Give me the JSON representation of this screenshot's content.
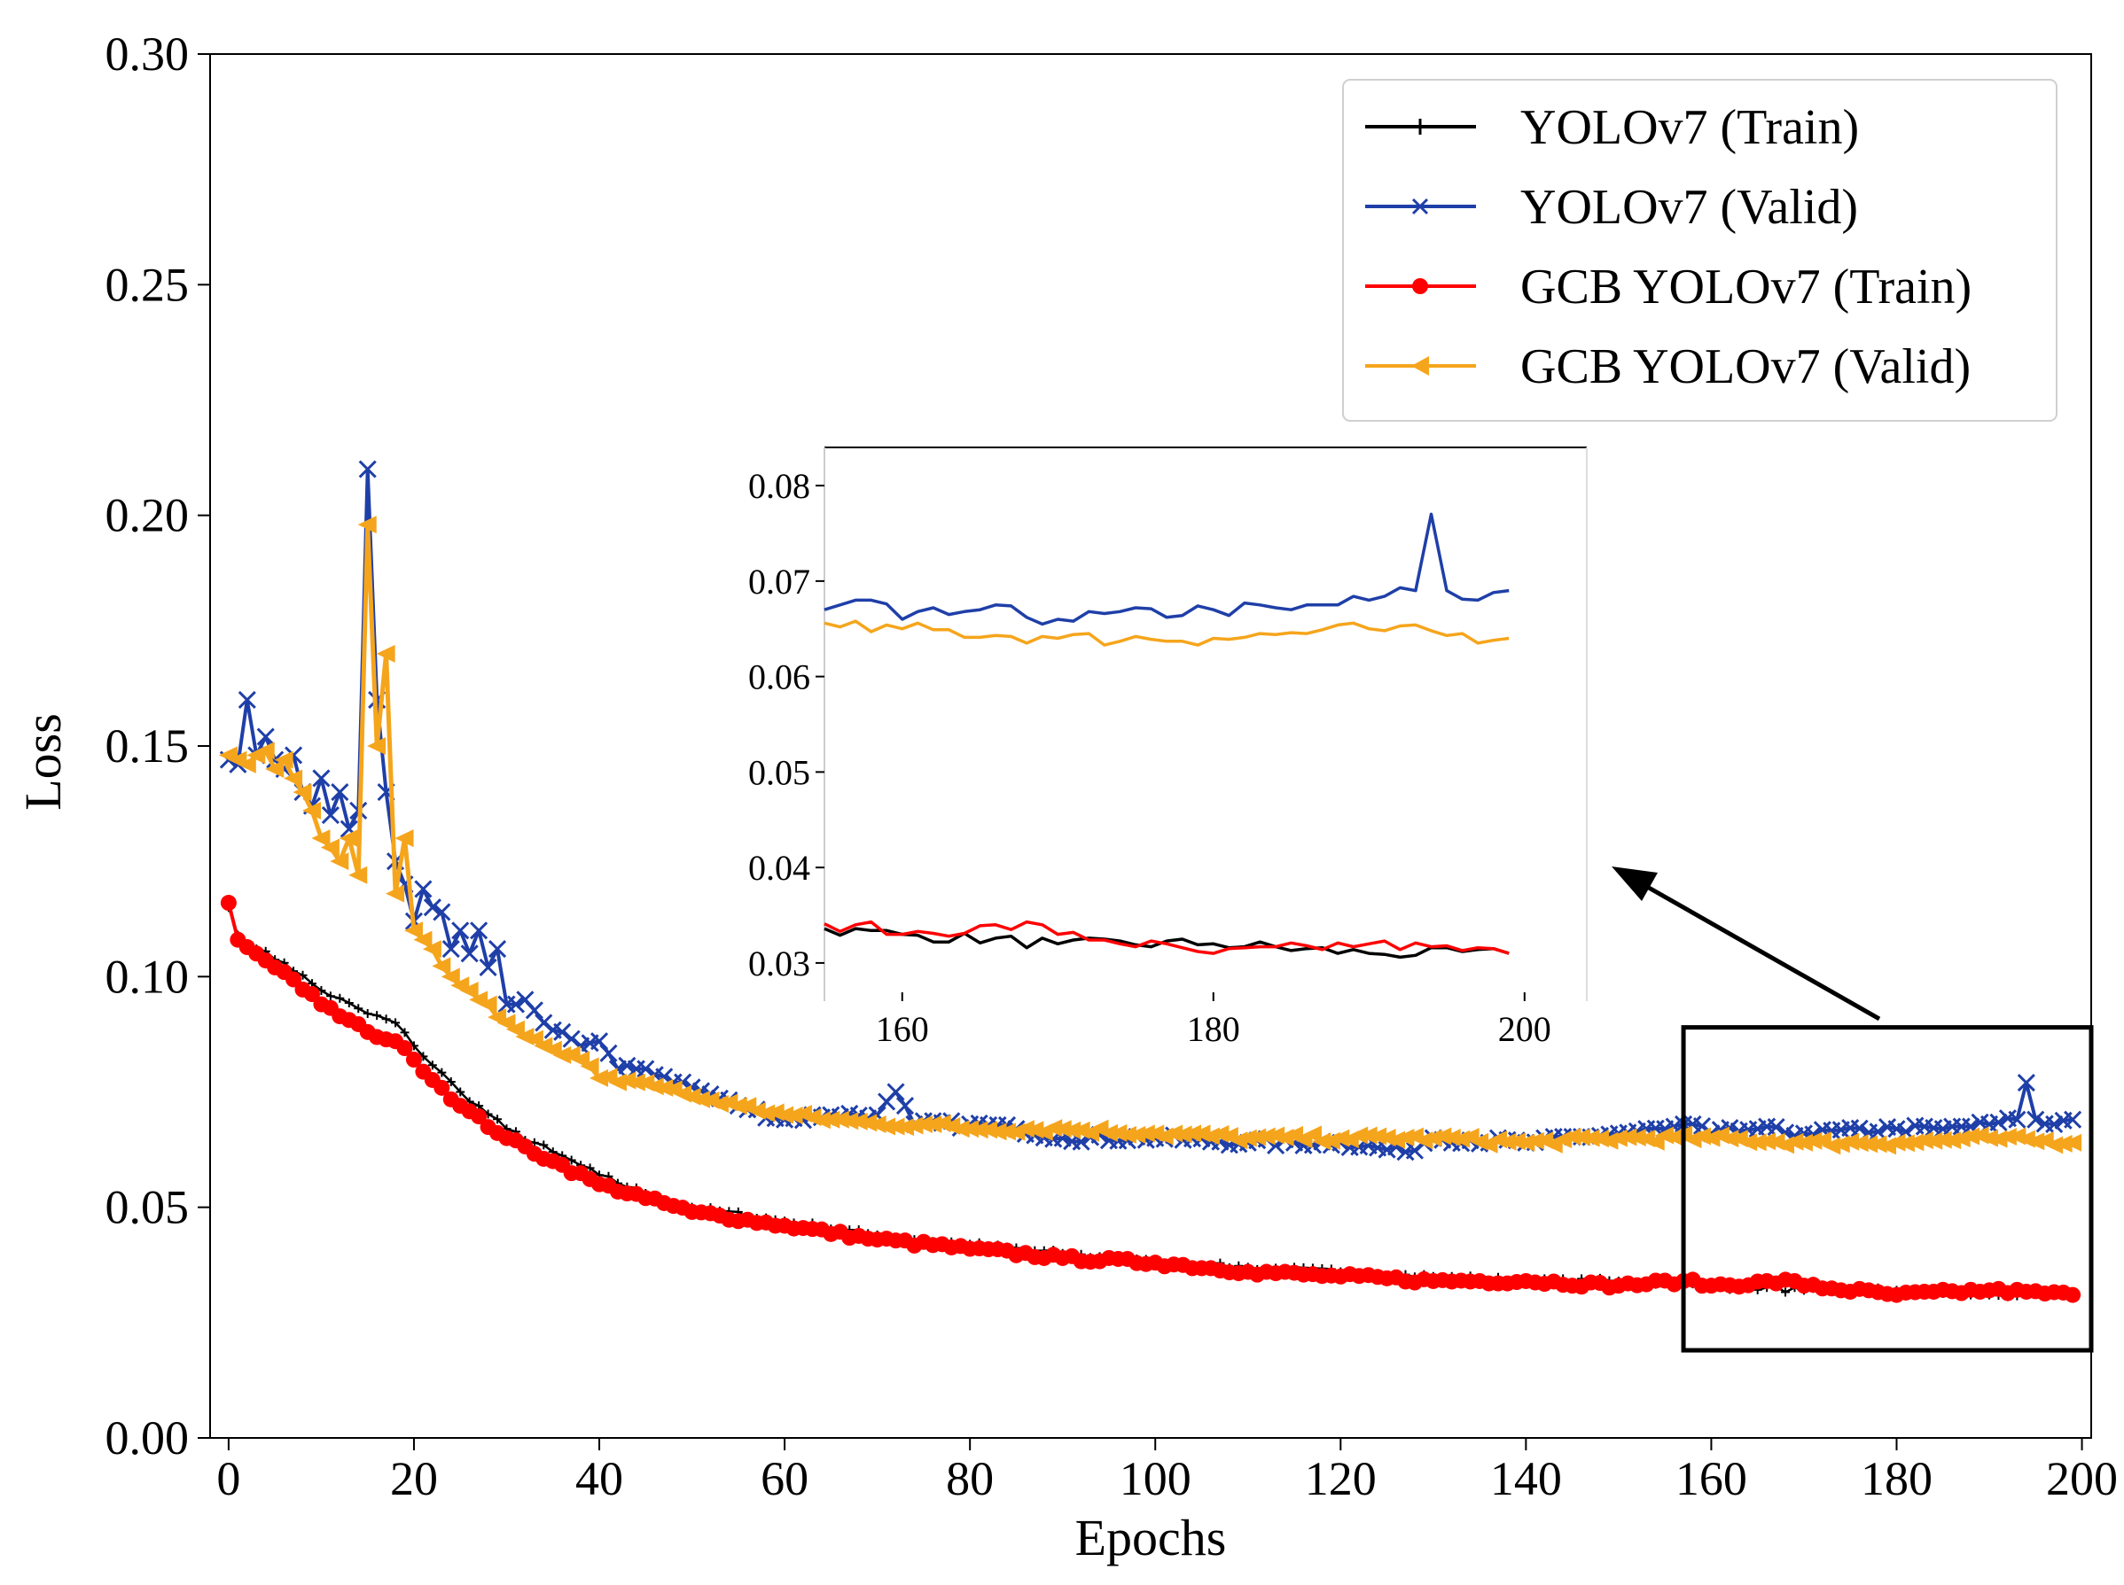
{
  "chart_data": {
    "type": "line",
    "xlabel": "Epochs",
    "ylabel": "Loss",
    "xlim": [
      -2,
      201
    ],
    "ylim": [
      0,
      0.3
    ],
    "xticks": [
      "0",
      "20",
      "40",
      "60",
      "80",
      "100",
      "120",
      "140",
      "160",
      "180",
      "200"
    ],
    "yticks": [
      "0.00",
      "0.05",
      "0.10",
      "0.15",
      "0.20",
      "0.25",
      "0.30"
    ],
    "legend_position": "top-right",
    "series": [
      {
        "name": "YOLOv7 (Train)",
        "color": "#000000",
        "marker": "plus",
        "keypoints": [
          [
            0,
            0.115
          ],
          [
            1,
            0.109
          ],
          [
            3,
            0.106
          ],
          [
            6,
            0.103
          ],
          [
            10,
            0.097
          ],
          [
            15,
            0.092
          ],
          [
            18,
            0.09
          ],
          [
            20,
            0.085
          ],
          [
            25,
            0.075
          ],
          [
            30,
            0.067
          ],
          [
            35,
            0.062
          ],
          [
            40,
            0.057
          ],
          [
            45,
            0.053
          ],
          [
            50,
            0.05
          ],
          [
            60,
            0.047
          ],
          [
            70,
            0.044
          ],
          [
            80,
            0.042
          ],
          [
            90,
            0.04
          ],
          [
            100,
            0.038
          ],
          [
            110,
            0.037
          ],
          [
            120,
            0.036
          ],
          [
            130,
            0.035
          ],
          [
            140,
            0.034
          ],
          [
            150,
            0.034
          ],
          [
            160,
            0.033
          ],
          [
            170,
            0.032
          ],
          [
            180,
            0.032
          ],
          [
            190,
            0.031
          ],
          [
            199,
            0.031
          ]
        ]
      },
      {
        "name": "YOLOv7 (Valid)",
        "color": "#1f3fa8",
        "marker": "x",
        "keypoints": [
          [
            0,
            0.147
          ],
          [
            1,
            0.146
          ],
          [
            2,
            0.16
          ],
          [
            3,
            0.148
          ],
          [
            4,
            0.152
          ],
          [
            5,
            0.147
          ],
          [
            6,
            0.145
          ],
          [
            7,
            0.148
          ],
          [
            8,
            0.14
          ],
          [
            9,
            0.137
          ],
          [
            10,
            0.143
          ],
          [
            11,
            0.135
          ],
          [
            12,
            0.14
          ],
          [
            13,
            0.132
          ],
          [
            14,
            0.136
          ],
          [
            15,
            0.21
          ],
          [
            16,
            0.16
          ],
          [
            17,
            0.14
          ],
          [
            18,
            0.125
          ],
          [
            19,
            0.12
          ],
          [
            20,
            0.112
          ],
          [
            21,
            0.119
          ],
          [
            22,
            0.115
          ],
          [
            23,
            0.114
          ],
          [
            24,
            0.106
          ],
          [
            25,
            0.11
          ],
          [
            26,
            0.105
          ],
          [
            27,
            0.11
          ],
          [
            28,
            0.102
          ],
          [
            29,
            0.106
          ],
          [
            30,
            0.094
          ],
          [
            32,
            0.095
          ],
          [
            34,
            0.09
          ],
          [
            36,
            0.088
          ],
          [
            38,
            0.085
          ],
          [
            40,
            0.086
          ],
          [
            42,
            0.08
          ],
          [
            45,
            0.08
          ],
          [
            50,
            0.076
          ],
          [
            55,
            0.072
          ],
          [
            60,
            0.069
          ],
          [
            65,
            0.07
          ],
          [
            70,
            0.07
          ],
          [
            72,
            0.075
          ],
          [
            74,
            0.068
          ],
          [
            80,
            0.068
          ],
          [
            85,
            0.067
          ],
          [
            90,
            0.065
          ],
          [
            100,
            0.065
          ],
          [
            110,
            0.064
          ],
          [
            120,
            0.064
          ],
          [
            127,
            0.062
          ],
          [
            130,
            0.065
          ],
          [
            140,
            0.064
          ],
          [
            150,
            0.066
          ],
          [
            155,
            0.067
          ],
          [
            158,
            0.068
          ],
          [
            160,
            0.066
          ],
          [
            165,
            0.067
          ],
          [
            170,
            0.066
          ],
          [
            180,
            0.067
          ],
          [
            185,
            0.067
          ],
          [
            190,
            0.068
          ],
          [
            193,
            0.069
          ],
          [
            194,
            0.077
          ],
          [
            195,
            0.069
          ],
          [
            197,
            0.068
          ],
          [
            199,
            0.069
          ]
        ]
      },
      {
        "name": "GCB YOLOv7 (Train)",
        "color": "#ff0000",
        "marker": "dot",
        "keypoints": [
          [
            0,
            0.116
          ],
          [
            1,
            0.108
          ],
          [
            3,
            0.105
          ],
          [
            6,
            0.101
          ],
          [
            10,
            0.094
          ],
          [
            15,
            0.088
          ],
          [
            18,
            0.086
          ],
          [
            20,
            0.082
          ],
          [
            25,
            0.072
          ],
          [
            30,
            0.065
          ],
          [
            35,
            0.06
          ],
          [
            40,
            0.055
          ],
          [
            45,
            0.052
          ],
          [
            50,
            0.049
          ],
          [
            60,
            0.046
          ],
          [
            70,
            0.043
          ],
          [
            80,
            0.041
          ],
          [
            90,
            0.039
          ],
          [
            100,
            0.038
          ],
          [
            110,
            0.036
          ],
          [
            120,
            0.035
          ],
          [
            130,
            0.034
          ],
          [
            140,
            0.034
          ],
          [
            150,
            0.033
          ],
          [
            157,
            0.034
          ],
          [
            160,
            0.033
          ],
          [
            169,
            0.034
          ],
          [
            170,
            0.033
          ],
          [
            180,
            0.031
          ],
          [
            190,
            0.032
          ],
          [
            199,
            0.031
          ]
        ]
      },
      {
        "name": "GCB YOLOv7 (Valid)",
        "color": "#f5a51c",
        "marker": "triangle-left",
        "keypoints": [
          [
            0,
            0.148
          ],
          [
            1,
            0.147
          ],
          [
            2,
            0.146
          ],
          [
            3,
            0.148
          ],
          [
            4,
            0.149
          ],
          [
            5,
            0.145
          ],
          [
            6,
            0.147
          ],
          [
            7,
            0.143
          ],
          [
            8,
            0.14
          ],
          [
            9,
            0.136
          ],
          [
            10,
            0.13
          ],
          [
            11,
            0.128
          ],
          [
            12,
            0.125
          ],
          [
            13,
            0.13
          ],
          [
            14,
            0.122
          ],
          [
            15,
            0.198
          ],
          [
            16,
            0.15
          ],
          [
            17,
            0.17
          ],
          [
            18,
            0.118
          ],
          [
            19,
            0.13
          ],
          [
            20,
            0.11
          ],
          [
            21,
            0.108
          ],
          [
            22,
            0.106
          ],
          [
            24,
            0.1
          ],
          [
            26,
            0.097
          ],
          [
            28,
            0.094
          ],
          [
            30,
            0.09
          ],
          [
            32,
            0.087
          ],
          [
            34,
            0.085
          ],
          [
            36,
            0.083
          ],
          [
            38,
            0.082
          ],
          [
            40,
            0.078
          ],
          [
            45,
            0.077
          ],
          [
            50,
            0.074
          ],
          [
            55,
            0.072
          ],
          [
            60,
            0.07
          ],
          [
            65,
            0.069
          ],
          [
            70,
            0.068
          ],
          [
            75,
            0.068
          ],
          [
            80,
            0.067
          ],
          [
            90,
            0.067
          ],
          [
            100,
            0.066
          ],
          [
            110,
            0.065
          ],
          [
            120,
            0.065
          ],
          [
            130,
            0.065
          ],
          [
            140,
            0.064
          ],
          [
            150,
            0.065
          ],
          [
            160,
            0.065
          ],
          [
            170,
            0.064
          ],
          [
            180,
            0.064
          ],
          [
            190,
            0.065
          ],
          [
            199,
            0.064
          ]
        ]
      }
    ],
    "zoom_box": {
      "x_range": [
        157,
        201
      ],
      "y_range": [
        0.019,
        0.089
      ]
    },
    "inset": {
      "xlim": [
        155,
        204
      ],
      "ylim": [
        0.026,
        0.084
      ],
      "xticks": [
        "160",
        "180",
        "200"
      ],
      "yticks": [
        "0.03",
        "0.04",
        "0.05",
        "0.06",
        "0.07",
        "0.08"
      ]
    }
  }
}
